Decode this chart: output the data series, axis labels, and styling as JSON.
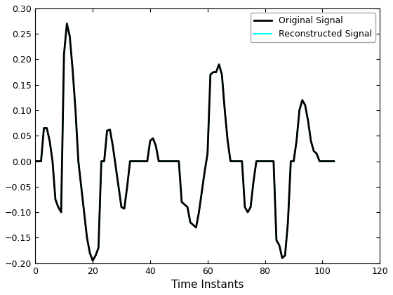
{
  "xlabel": "Time Instants",
  "xlim": [
    0,
    120
  ],
  "ylim": [
    -0.2,
    0.3
  ],
  "xticks": [
    0,
    20,
    40,
    60,
    80,
    100,
    120
  ],
  "yticks": [
    -0.2,
    -0.15,
    -0.1,
    -0.05,
    0,
    0.05,
    0.1,
    0.15,
    0.2,
    0.25,
    0.3
  ],
  "original_color": "#000000",
  "reconstructed_color": "#00FFFF",
  "original_label": "Original Signal",
  "reconstructed_label": "Reconstructed Signal",
  "original_linewidth": 2.0,
  "reconstructed_linewidth": 1.5,
  "background_color": "#ffffff",
  "legend_loc": "upper right",
  "signal_data": {
    "t": [
      0,
      1,
      2,
      3,
      4,
      5,
      6,
      7,
      8,
      9,
      10,
      11,
      12,
      13,
      14,
      15,
      16,
      17,
      18,
      19,
      20,
      21,
      22,
      23,
      24,
      25,
      26,
      27,
      28,
      29,
      30,
      31,
      32,
      33,
      34,
      35,
      36,
      37,
      38,
      39,
      40,
      41,
      42,
      43,
      44,
      45,
      46,
      47,
      48,
      49,
      50,
      51,
      52,
      53,
      54,
      55,
      56,
      57,
      58,
      59,
      60,
      61,
      62,
      63,
      64,
      65,
      66,
      67,
      68,
      69,
      70,
      71,
      72,
      73,
      74,
      75,
      76,
      77,
      78,
      79,
      80,
      81,
      82,
      83,
      84,
      85,
      86,
      87,
      88,
      89,
      90,
      91,
      92,
      93,
      94,
      95,
      96,
      97,
      98,
      99,
      100,
      101,
      102,
      103,
      104
    ],
    "y": [
      0.0,
      0.0,
      0.0,
      0.065,
      0.065,
      0.04,
      0.0,
      -0.075,
      -0.09,
      -0.1,
      0.21,
      0.27,
      0.245,
      0.18,
      0.1,
      0.0,
      -0.05,
      -0.1,
      -0.15,
      -0.18,
      -0.195,
      -0.185,
      -0.17,
      0.0,
      0.0,
      0.06,
      0.062,
      0.03,
      -0.01,
      -0.05,
      -0.09,
      -0.093,
      -0.05,
      0.0,
      0.0,
      0.0,
      0.0,
      0.0,
      0.0,
      0.0,
      0.04,
      0.045,
      0.03,
      0.0,
      0.0,
      0.0,
      0.0,
      0.0,
      0.0,
      0.0,
      0.0,
      -0.08,
      -0.085,
      -0.09,
      -0.12,
      -0.125,
      -0.13,
      -0.1,
      -0.06,
      -0.02,
      0.015,
      0.17,
      0.175,
      0.175,
      0.19,
      0.17,
      0.1,
      0.04,
      0.0,
      0.0,
      0.0,
      0.0,
      0.0,
      -0.09,
      -0.1,
      -0.09,
      -0.04,
      0.0,
      0.0,
      0.0,
      0.0,
      0.0,
      0.0,
      0.0,
      -0.155,
      -0.165,
      -0.19,
      -0.185,
      -0.12,
      0.0,
      0.0,
      0.04,
      0.1,
      0.12,
      0.11,
      0.08,
      0.04,
      0.02,
      0.015,
      0.0,
      0.0,
      0.0,
      0.0,
      0.0,
      0.0
    ]
  }
}
